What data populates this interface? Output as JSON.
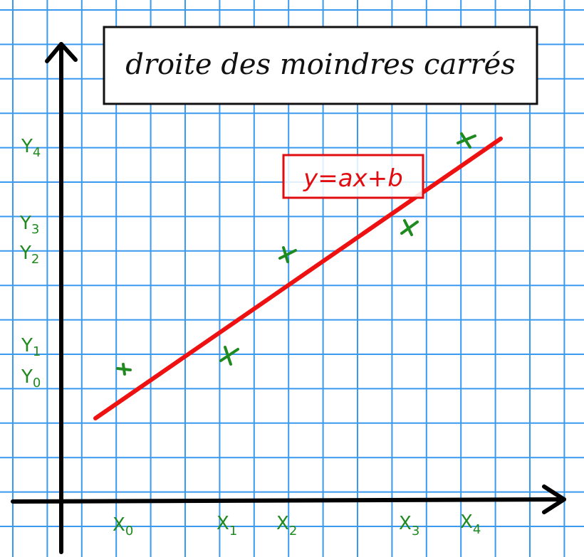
{
  "title": "droite des moindres carrés",
  "equation": "y=ax+b",
  "colors": {
    "grid": "#3a9af0",
    "axis": "#000000",
    "line": "#ee1111",
    "points": "#1f8a1f"
  },
  "x_labels": [
    {
      "base": "X",
      "sub": "0"
    },
    {
      "base": "X",
      "sub": "1"
    },
    {
      "base": "X",
      "sub": "2"
    },
    {
      "base": "X",
      "sub": "3"
    },
    {
      "base": "X",
      "sub": "4"
    }
  ],
  "y_labels": [
    {
      "base": "Y",
      "sub": "4"
    },
    {
      "base": "Y",
      "sub": "3"
    },
    {
      "base": "Y",
      "sub": "2"
    },
    {
      "base": "Y",
      "sub": "1"
    },
    {
      "base": "Y",
      "sub": "0"
    }
  ],
  "points_count": 5
}
